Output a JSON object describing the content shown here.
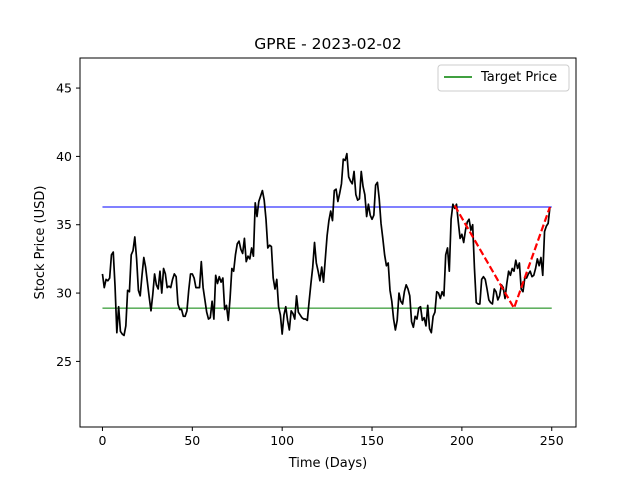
{
  "chart_data": {
    "type": "line",
    "title": "GPRE - 2023-02-02",
    "xlabel": "Time (Days)",
    "ylabel": "Stock Price (USD)",
    "xlim": [
      -12.5,
      263.5
    ],
    "ylim": [
      20.2,
      47.2
    ],
    "xticks": [
      0,
      50,
      100,
      150,
      200,
      250
    ],
    "yticks": [
      25,
      30,
      35,
      40,
      45
    ],
    "grid": false,
    "legend": {
      "placement": "top-right",
      "entries": [
        "Target Price"
      ]
    },
    "series": [
      {
        "name": "Stock Price",
        "color": "#000000",
        "style": "solid",
        "points": [
          [
            0,
            31.4
          ],
          [
            1,
            30.4
          ],
          [
            2,
            31.0
          ],
          [
            3,
            30.9
          ],
          [
            4,
            31.1
          ],
          [
            5,
            32.8
          ],
          [
            6,
            33.0
          ],
          [
            7,
            30.5
          ],
          [
            8,
            27.1
          ],
          [
            9,
            29.0
          ],
          [
            10,
            27.2
          ],
          [
            11,
            27.0
          ],
          [
            12,
            26.9
          ],
          [
            13,
            27.6
          ],
          [
            14,
            30.2
          ],
          [
            15,
            30.1
          ],
          [
            16,
            32.8
          ],
          [
            17,
            33.1
          ],
          [
            18,
            34.1
          ],
          [
            19,
            32.5
          ],
          [
            20,
            30.2
          ],
          [
            21,
            29.8
          ],
          [
            22,
            31.3
          ],
          [
            23,
            32.6
          ],
          [
            24,
            31.9
          ],
          [
            25,
            30.8
          ],
          [
            26,
            29.7
          ],
          [
            27,
            28.7
          ],
          [
            28,
            29.9
          ],
          [
            29,
            31.4
          ],
          [
            30,
            30.6
          ],
          [
            31,
            30.3
          ],
          [
            32,
            31.6
          ],
          [
            33,
            30.0
          ],
          [
            34,
            31.8
          ],
          [
            35,
            31.4
          ],
          [
            36,
            30.4
          ],
          [
            37,
            30.5
          ],
          [
            38,
            30.4
          ],
          [
            39,
            31.0
          ],
          [
            40,
            31.4
          ],
          [
            41,
            31.2
          ],
          [
            42,
            29.2
          ],
          [
            43,
            28.8
          ],
          [
            44,
            28.8
          ],
          [
            45,
            28.3
          ],
          [
            46,
            28.3
          ],
          [
            47,
            28.7
          ],
          [
            48,
            30.2
          ],
          [
            49,
            31.4
          ],
          [
            50,
            31.4
          ],
          [
            51,
            31.1
          ],
          [
            52,
            30.4
          ],
          [
            53,
            30.4
          ],
          [
            54,
            30.4
          ],
          [
            55,
            32.3
          ],
          [
            56,
            30.4
          ],
          [
            57,
            29.5
          ],
          [
            58,
            28.6
          ],
          [
            59,
            28.1
          ],
          [
            60,
            28.2
          ],
          [
            61,
            29.4
          ],
          [
            62,
            28.1
          ],
          [
            63,
            31.3
          ],
          [
            64,
            30.7
          ],
          [
            65,
            31.2
          ],
          [
            66,
            30.8
          ],
          [
            67,
            31.1
          ],
          [
            68,
            28.8
          ],
          [
            69,
            29.1
          ],
          [
            70,
            28.0
          ],
          [
            71,
            29.6
          ],
          [
            72,
            31.8
          ],
          [
            73,
            31.6
          ],
          [
            74,
            32.8
          ],
          [
            75,
            33.6
          ],
          [
            76,
            33.8
          ],
          [
            77,
            33.2
          ],
          [
            78,
            32.9
          ],
          [
            79,
            34.0
          ],
          [
            80,
            32.3
          ],
          [
            81,
            32.7
          ],
          [
            82,
            32.5
          ],
          [
            83,
            33.3
          ],
          [
            84,
            32.7
          ],
          [
            85,
            36.6
          ],
          [
            86,
            35.6
          ],
          [
            87,
            36.7
          ],
          [
            88,
            37.1
          ],
          [
            89,
            37.5
          ],
          [
            90,
            36.8
          ],
          [
            91,
            35.4
          ],
          [
            92,
            33.3
          ],
          [
            93,
            33.5
          ],
          [
            94,
            33.4
          ],
          [
            95,
            31.1
          ],
          [
            96,
            30.3
          ],
          [
            97,
            31.0
          ],
          [
            98,
            29.0
          ],
          [
            99,
            28.4
          ],
          [
            100,
            27.0
          ],
          [
            101,
            28.4
          ],
          [
            102,
            29.0
          ],
          [
            103,
            28.0
          ],
          [
            104,
            27.3
          ],
          [
            105,
            28.7
          ],
          [
            106,
            28.5
          ],
          [
            107,
            28.1
          ],
          [
            108,
            29.8
          ],
          [
            109,
            28.6
          ],
          [
            110,
            28.4
          ],
          [
            111,
            28.2
          ],
          [
            112,
            28.1
          ],
          [
            113,
            28.1
          ],
          [
            114,
            28.0
          ],
          [
            115,
            29.4
          ],
          [
            116,
            30.7
          ],
          [
            117,
            31.9
          ],
          [
            118,
            33.7
          ],
          [
            119,
            32.2
          ],
          [
            120,
            31.6
          ],
          [
            121,
            30.9
          ],
          [
            122,
            31.9
          ],
          [
            123,
            30.8
          ],
          [
            124,
            32.5
          ],
          [
            125,
            34.2
          ],
          [
            126,
            35.3
          ],
          [
            127,
            36.0
          ],
          [
            128,
            35.3
          ],
          [
            129,
            37.5
          ],
          [
            130,
            37.6
          ],
          [
            131,
            36.7
          ],
          [
            132,
            37.3
          ],
          [
            133,
            38.0
          ],
          [
            134,
            39.8
          ],
          [
            135,
            39.7
          ],
          [
            136,
            40.2
          ],
          [
            137,
            38.5
          ],
          [
            138,
            38.2
          ],
          [
            139,
            38.0
          ],
          [
            140,
            38.9
          ],
          [
            141,
            37.2
          ],
          [
            142,
            36.8
          ],
          [
            143,
            36.9
          ],
          [
            144,
            38.9
          ],
          [
            145,
            37.8
          ],
          [
            146,
            37.2
          ],
          [
            147,
            35.6
          ],
          [
            148,
            36.5
          ],
          [
            149,
            35.7
          ],
          [
            150,
            35.4
          ],
          [
            151,
            35.7
          ],
          [
            152,
            37.9
          ],
          [
            153,
            38.1
          ],
          [
            154,
            36.9
          ],
          [
            155,
            35.1
          ],
          [
            156,
            34.0
          ],
          [
            157,
            32.8
          ],
          [
            158,
            32.0
          ],
          [
            159,
            32.2
          ],
          [
            160,
            30.2
          ],
          [
            161,
            29.4
          ],
          [
            162,
            28.1
          ],
          [
            163,
            27.3
          ],
          [
            164,
            28.0
          ],
          [
            165,
            30.0
          ],
          [
            166,
            29.4
          ],
          [
            167,
            29.2
          ],
          [
            168,
            30.1
          ],
          [
            169,
            30.6
          ],
          [
            170,
            30.3
          ],
          [
            171,
            29.8
          ],
          [
            172,
            27.9
          ],
          [
            173,
            27.5
          ],
          [
            174,
            28.3
          ],
          [
            175,
            28.1
          ],
          [
            176,
            28.9
          ],
          [
            177,
            29.0
          ],
          [
            178,
            28.0
          ],
          [
            179,
            28.2
          ],
          [
            180,
            27.6
          ],
          [
            181,
            29.1
          ],
          [
            182,
            27.4
          ],
          [
            183,
            27.1
          ],
          [
            184,
            28.3
          ],
          [
            185,
            28.6
          ],
          [
            186,
            30.1
          ],
          [
            187,
            30.0
          ],
          [
            188,
            29.6
          ],
          [
            189,
            30.1
          ],
          [
            190,
            29.8
          ],
          [
            191,
            32.8
          ],
          [
            192,
            33.3
          ],
          [
            193,
            31.6
          ],
          [
            194,
            35.4
          ],
          [
            195,
            36.5
          ],
          [
            196,
            36.2
          ],
          [
            197,
            36.5
          ],
          [
            198,
            35.2
          ],
          [
            199,
            34.0
          ],
          [
            200,
            34.3
          ],
          [
            201,
            33.7
          ],
          [
            202,
            34.6
          ],
          [
            203,
            35.2
          ],
          [
            204,
            35.4
          ],
          [
            205,
            34.6
          ],
          [
            206,
            35.0
          ],
          [
            207,
            31.8
          ],
          [
            208,
            29.3
          ],
          [
            209,
            29.2
          ],
          [
            210,
            29.2
          ],
          [
            211,
            31.0
          ],
          [
            212,
            31.2
          ],
          [
            213,
            31.0
          ],
          [
            214,
            30.3
          ],
          [
            215,
            29.5
          ],
          [
            216,
            29.3
          ],
          [
            217,
            29.2
          ],
          [
            218,
            30.3
          ],
          [
            219,
            30.1
          ],
          [
            220,
            29.5
          ],
          [
            221,
            29.8
          ],
          [
            222,
            30.6
          ],
          [
            223,
            30.4
          ],
          [
            224,
            29.6
          ],
          [
            225,
            30.7
          ],
          [
            226,
            31.6
          ],
          [
            227,
            31.3
          ],
          [
            228,
            31.8
          ],
          [
            229,
            31.6
          ],
          [
            230,
            32.4
          ],
          [
            231,
            31.8
          ],
          [
            232,
            32.2
          ],
          [
            233,
            30.3
          ],
          [
            234,
            30.1
          ],
          [
            235,
            31.1
          ],
          [
            236,
            31.1
          ],
          [
            237,
            31.4
          ],
          [
            238,
            31.6
          ],
          [
            239,
            31.2
          ],
          [
            240,
            31.3
          ],
          [
            241,
            31.8
          ],
          [
            242,
            32.5
          ],
          [
            243,
            32.0
          ],
          [
            244,
            32.6
          ],
          [
            245,
            31.3
          ],
          [
            246,
            34.5
          ],
          [
            247,
            34.9
          ],
          [
            248,
            35.1
          ],
          [
            249,
            36.3
          ]
        ]
      },
      {
        "name": "Pattern",
        "color": "#ff0000",
        "style": "dashed",
        "points": [
          [
            196,
            36.4
          ],
          [
            229,
            28.9
          ],
          [
            249,
            36.3
          ]
        ]
      },
      {
        "name": "Upper Level",
        "color": "#0000ff",
        "style": "solid",
        "points": [
          [
            0,
            36.3
          ],
          [
            250,
            36.3
          ]
        ]
      },
      {
        "name": "Target Price",
        "color": "#008000",
        "style": "solid",
        "points": [
          [
            0,
            28.9
          ],
          [
            250,
            28.9
          ]
        ]
      }
    ]
  }
}
